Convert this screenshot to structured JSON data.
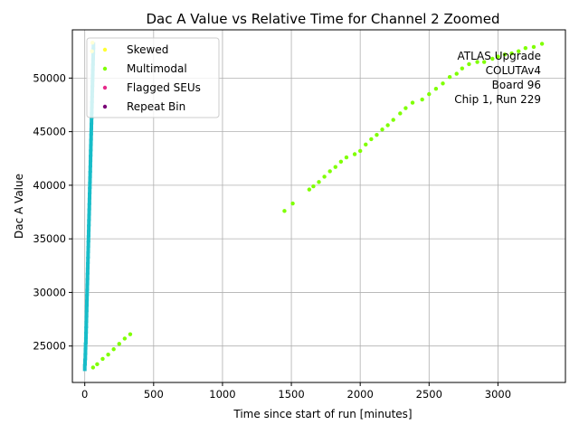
{
  "chart_data": {
    "type": "scatter",
    "title": "Dac A Value vs Relative Time for Channel 2 Zoomed",
    "xlabel": "Time since start of run [minutes]",
    "ylabel": "Dac A Value",
    "xlim": [
      -90,
      3490
    ],
    "ylim": [
      21600,
      54500
    ],
    "xticks": [
      0,
      500,
      1000,
      1500,
      2000,
      2500,
      3000
    ],
    "yticks": [
      25000,
      30000,
      35000,
      40000,
      45000,
      50000
    ],
    "grid": true,
    "legend_position": "top-left",
    "annotation": [
      "ATLAS Upgrade",
      "COLUTAv4",
      "Board 96",
      "Chip 1, Run 229"
    ],
    "series": [
      {
        "name": "Skewed",
        "color": "#ffff33",
        "points": [
          [
            52,
            52500
          ],
          [
            56,
            53300
          ]
        ]
      },
      {
        "name": "Multimodal",
        "color": "#7fff00",
        "points": [
          [
            1450,
            37600
          ],
          [
            1510,
            38300
          ],
          [
            1630,
            39600
          ],
          [
            1660,
            39900
          ],
          [
            1700,
            40300
          ],
          [
            1740,
            40800
          ],
          [
            1780,
            41300
          ],
          [
            1820,
            41700
          ],
          [
            1860,
            42200
          ],
          [
            1900,
            42600
          ],
          [
            1960,
            42900
          ],
          [
            2000,
            43200
          ],
          [
            2040,
            43800
          ],
          [
            2080,
            44300
          ],
          [
            2120,
            44700
          ],
          [
            2160,
            45200
          ],
          [
            2200,
            45600
          ],
          [
            2240,
            46100
          ],
          [
            2290,
            46700
          ],
          [
            2330,
            47200
          ],
          [
            2380,
            47700
          ],
          [
            2450,
            48000
          ],
          [
            2500,
            48500
          ],
          [
            2550,
            49000
          ],
          [
            2600,
            49500
          ],
          [
            2650,
            50100
          ],
          [
            2700,
            50400
          ],
          [
            2740,
            50900
          ],
          [
            2790,
            51300
          ],
          [
            2850,
            51500
          ],
          [
            2900,
            51500
          ],
          [
            2960,
            51800
          ],
          [
            3000,
            52000
          ],
          [
            3050,
            52200
          ],
          [
            3100,
            52300
          ],
          [
            3150,
            52500
          ],
          [
            3200,
            52800
          ],
          [
            3260,
            52900
          ],
          [
            3320,
            53200
          ],
          [
            60,
            23000
          ],
          [
            90,
            23300
          ],
          [
            130,
            23800
          ],
          [
            170,
            24200
          ],
          [
            210,
            24700
          ],
          [
            250,
            25200
          ],
          [
            290,
            25700
          ],
          [
            330,
            26100
          ]
        ]
      },
      {
        "name": "Flagged SEUs",
        "color": "#e7298a",
        "points": []
      },
      {
        "name": "Repeat Bin",
        "color": "#7a0177",
        "points": []
      },
      {
        "name": "",
        "color": "#17bcc8",
        "points": [
          [
            0,
            23000
          ],
          [
            2,
            23500
          ],
          [
            4,
            24000
          ],
          [
            5,
            24500
          ],
          [
            6,
            25000
          ],
          [
            8,
            25500
          ],
          [
            9,
            26000
          ],
          [
            10,
            26500
          ],
          [
            11,
            27000
          ],
          [
            12,
            27500
          ],
          [
            13,
            28000
          ],
          [
            14,
            28500
          ],
          [
            15,
            29000
          ],
          [
            16,
            29500
          ],
          [
            17,
            30000
          ],
          [
            18,
            30500
          ],
          [
            19,
            31000
          ],
          [
            20,
            31500
          ],
          [
            21,
            32000
          ],
          [
            22,
            32500
          ],
          [
            23,
            33000
          ],
          [
            24,
            33500
          ],
          [
            25,
            34000
          ],
          [
            26,
            34500
          ],
          [
            27,
            35000
          ],
          [
            28,
            35500
          ],
          [
            29,
            36000
          ],
          [
            30,
            36500
          ],
          [
            31,
            37000
          ],
          [
            32,
            37500
          ],
          [
            33,
            38000
          ],
          [
            34,
            38500
          ],
          [
            35,
            39000
          ],
          [
            36,
            39500
          ],
          [
            37,
            40000
          ],
          [
            38,
            40500
          ],
          [
            39,
            41000
          ],
          [
            40,
            41500
          ],
          [
            41,
            42000
          ],
          [
            42,
            42500
          ],
          [
            43,
            43000
          ],
          [
            44,
            43500
          ],
          [
            45,
            44000
          ],
          [
            46,
            44500
          ],
          [
            47,
            45000
          ],
          [
            48,
            45500
          ],
          [
            49,
            46000
          ],
          [
            50,
            46500
          ],
          [
            51,
            47000
          ],
          [
            52,
            47500
          ],
          [
            53,
            48000
          ],
          [
            54,
            48500
          ],
          [
            55,
            49000
          ],
          [
            56,
            49500
          ],
          [
            57,
            50000
          ],
          [
            58,
            50500
          ],
          [
            59,
            51000
          ],
          [
            60,
            51500
          ],
          [
            61,
            52000
          ],
          [
            62,
            52500
          ],
          [
            63,
            53000
          ]
        ]
      }
    ]
  }
}
